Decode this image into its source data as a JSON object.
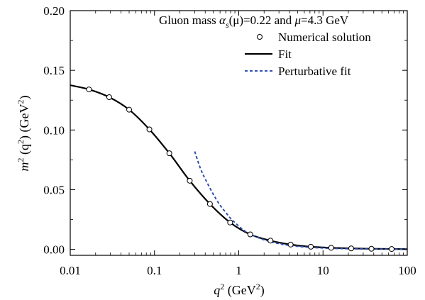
{
  "chart_data": {
    "type": "line",
    "annotation": {
      "prefix": "Gluon mass ",
      "alpha_symbol": "α",
      "alpha_sub": "s",
      "alpha_arg": "(μ)",
      "alpha_value": "=0.22 and ",
      "mu_symbol": "μ",
      "mu_value": "=4.3 GeV"
    },
    "xlabel": {
      "main": "q",
      "sup": "2",
      "unit_prefix": " (GeV",
      "unit_sup": "2",
      "unit_suffix": ")"
    },
    "ylabel": {
      "main": "m",
      "sup1": "2",
      "arg_prefix": " (q",
      "sup2": "2",
      "arg_suffix": ") (GeV",
      "sup3": "2",
      "unit_suffix": ")"
    },
    "x_scale": "log",
    "xlim": [
      0.01,
      100
    ],
    "ylim": [
      -0.005,
      0.2
    ],
    "x_ticks": [
      0.01,
      0.1,
      1,
      10,
      100
    ],
    "x_tick_labels": [
      "0.01",
      "0.1",
      "1",
      "10",
      "100"
    ],
    "y_ticks": [
      0.0,
      0.05,
      0.1,
      0.15,
      0.2
    ],
    "y_tick_labels": [
      "0.00",
      "0.05",
      "0.10",
      "0.15",
      "0.20"
    ],
    "legend_position": "top-right",
    "series": [
      {
        "name": "Numerical solution",
        "style": "open-circle",
        "color": "#000000",
        "x": [
          0.0167,
          0.029,
          0.05,
          0.087,
          0.15,
          0.262,
          0.455,
          0.79,
          1.37,
          2.38,
          4.13,
          7.17,
          12.5,
          21.6,
          37.6,
          65.3
        ],
        "y": [
          0.134,
          0.1275,
          0.117,
          0.1005,
          0.0805,
          0.0575,
          0.038,
          0.0225,
          0.0125,
          0.0073,
          0.004,
          0.0022,
          0.0013,
          0.0008,
          0.0005,
          0.0003
        ]
      },
      {
        "name": "Fit",
        "style": "solid",
        "color": "#000000",
        "x": [
          0.01,
          0.0167,
          0.029,
          0.05,
          0.087,
          0.15,
          0.262,
          0.455,
          0.79,
          1.37,
          2.38,
          4.13,
          7.17,
          12.5,
          21.6,
          37.6,
          65.3,
          100
        ],
        "y": [
          0.1375,
          0.134,
          0.1275,
          0.117,
          0.1005,
          0.0805,
          0.0575,
          0.038,
          0.0225,
          0.0125,
          0.0073,
          0.004,
          0.0022,
          0.0013,
          0.0008,
          0.0005,
          0.0003,
          0.0002
        ]
      },
      {
        "name": "Perturbative fit",
        "style": "dashed",
        "color": "#3050b0",
        "x": [
          0.3,
          0.35,
          0.4,
          0.5,
          0.6,
          0.7,
          0.8,
          1.0,
          1.2,
          1.5,
          2.0,
          3.0,
          5.0,
          10,
          20,
          50,
          100
        ],
        "y": [
          0.082,
          0.068,
          0.059,
          0.046,
          0.037,
          0.031,
          0.026,
          0.0195,
          0.015,
          0.0115,
          0.008,
          0.0048,
          0.0025,
          0.0011,
          0.0005,
          0.0002,
          0.0001
        ]
      }
    ]
  }
}
